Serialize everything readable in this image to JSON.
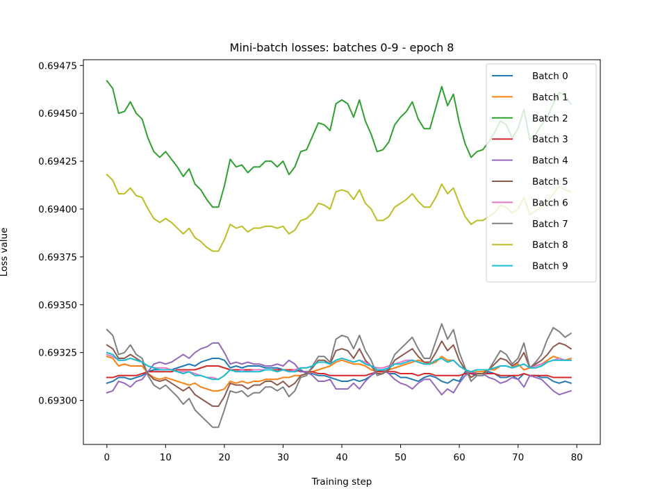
{
  "chart_data": {
    "type": "line",
    "title": "Mini-batch losses: batches 0-9 - epoch 8",
    "xlabel": "Training step",
    "ylabel": "Loss value",
    "xlim": [
      -4,
      84
    ],
    "ylim": [
      0.69277,
      0.69478
    ],
    "x_ticks": [
      0,
      10,
      20,
      30,
      40,
      50,
      60,
      70,
      80
    ],
    "x_tick_labels": [
      "0",
      "10",
      "20",
      "30",
      "40",
      "50",
      "60",
      "70",
      "80"
    ],
    "y_ticks": [
      0.693,
      0.69325,
      0.6935,
      0.69375,
      0.694,
      0.69425,
      0.6945,
      0.69475
    ],
    "y_tick_labels": [
      "0.69300",
      "0.69325",
      "0.69350",
      "0.69375",
      "0.69400",
      "0.69425",
      "0.69450",
      "0.69475"
    ],
    "grid": false,
    "legend_position": "top-right",
    "x_start": 0,
    "x_step": 1,
    "series": [
      {
        "name": "Batch 0",
        "color": "#1f77b4",
        "values": [
          0.69309,
          0.6931,
          0.69312,
          0.69312,
          0.69311,
          0.69312,
          0.69313,
          0.69315,
          0.69316,
          0.69316,
          0.69316,
          0.69316,
          0.69317,
          0.69318,
          0.69319,
          0.69318,
          0.6932,
          0.69321,
          0.69322,
          0.69322,
          0.69321,
          0.69317,
          0.69318,
          0.69317,
          0.69318,
          0.69318,
          0.69318,
          0.69317,
          0.69317,
          0.69317,
          0.69316,
          0.69316,
          0.69315,
          0.69316,
          0.69314,
          0.69314,
          0.69313,
          0.69313,
          0.69312,
          0.69311,
          0.6931,
          0.6931,
          0.69311,
          0.6931,
          0.69311,
          0.69313,
          0.69315,
          0.69316,
          0.69314,
          0.69314,
          0.69312,
          0.69312,
          0.69311,
          0.6931,
          0.69312,
          0.69313,
          0.69312,
          0.6931,
          0.69309,
          0.69311,
          0.6931,
          0.69315,
          0.69314,
          0.69313,
          0.69313,
          0.69315,
          0.69314,
          0.69312,
          0.69312,
          0.69313,
          0.69311,
          0.69314,
          0.69313,
          0.69313,
          0.69312,
          0.69312,
          0.6931,
          0.69309,
          0.6931,
          0.69309
        ]
      },
      {
        "name": "Batch 1",
        "color": "#ff7f0e",
        "values": [
          0.69323,
          0.69322,
          0.69318,
          0.69319,
          0.69318,
          0.69318,
          0.69318,
          0.69314,
          0.69312,
          0.69311,
          0.69312,
          0.69311,
          0.6931,
          0.69309,
          0.69308,
          0.69309,
          0.69307,
          0.69306,
          0.69305,
          0.69305,
          0.69306,
          0.6931,
          0.69309,
          0.6931,
          0.69309,
          0.6931,
          0.6931,
          0.69311,
          0.69311,
          0.69311,
          0.69312,
          0.69312,
          0.69313,
          0.69313,
          0.69314,
          0.69315,
          0.69316,
          0.69317,
          0.69318,
          0.6932,
          0.69321,
          0.6932,
          0.69319,
          0.69319,
          0.69318,
          0.69316,
          0.69315,
          0.69315,
          0.69316,
          0.69317,
          0.69318,
          0.69319,
          0.6932,
          0.69321,
          0.6932,
          0.69319,
          0.6932,
          0.69323,
          0.69321,
          0.69321,
          0.69318,
          0.69316,
          0.69314,
          0.69315,
          0.69315,
          0.69316,
          0.69316,
          0.69318,
          0.69318,
          0.69317,
          0.69319,
          0.69316,
          0.69317,
          0.69318,
          0.69319,
          0.69321,
          0.69323,
          0.69322,
          0.69321,
          0.69322
        ]
      },
      {
        "name": "Batch 2",
        "color": "#2ca02c",
        "values": [
          0.69467,
          0.69463,
          0.6945,
          0.69451,
          0.69456,
          0.6945,
          0.69447,
          0.69437,
          0.6943,
          0.69427,
          0.6943,
          0.69426,
          0.69422,
          0.69417,
          0.69421,
          0.69413,
          0.6941,
          0.69405,
          0.69401,
          0.69401,
          0.69412,
          0.69426,
          0.69422,
          0.69423,
          0.69419,
          0.69422,
          0.69422,
          0.69425,
          0.69425,
          0.69422,
          0.69425,
          0.69418,
          0.69422,
          0.6943,
          0.69431,
          0.69438,
          0.69445,
          0.69444,
          0.69441,
          0.69455,
          0.69457,
          0.69455,
          0.69448,
          0.69457,
          0.69446,
          0.69439,
          0.6943,
          0.69431,
          0.69435,
          0.69444,
          0.69448,
          0.69451,
          0.69456,
          0.69447,
          0.69442,
          0.69442,
          0.69453,
          0.69464,
          0.69454,
          0.6946,
          0.69445,
          0.69434,
          0.69427,
          0.6943,
          0.69431,
          0.69435,
          0.6944,
          0.69446,
          0.69444,
          0.69437,
          0.69442,
          0.69452,
          0.69436,
          0.69439,
          0.69444,
          0.69448,
          0.69455,
          0.69461,
          0.69459,
          0.69455
        ]
      },
      {
        "name": "Batch 3",
        "color": "#d62728",
        "values": [
          0.69312,
          0.69312,
          0.69313,
          0.69313,
          0.69313,
          0.69313,
          0.69314,
          0.69315,
          0.69315,
          0.69315,
          0.69315,
          0.69315,
          0.69316,
          0.69316,
          0.69316,
          0.69316,
          0.69317,
          0.69318,
          0.69318,
          0.69318,
          0.69317,
          0.69316,
          0.69316,
          0.69316,
          0.69316,
          0.69316,
          0.69316,
          0.69316,
          0.69316,
          0.69316,
          0.69316,
          0.69316,
          0.69316,
          0.69315,
          0.69315,
          0.69315,
          0.69314,
          0.69314,
          0.69313,
          0.69313,
          0.69313,
          0.69313,
          0.69313,
          0.69313,
          0.69313,
          0.69314,
          0.69315,
          0.69315,
          0.69315,
          0.69315,
          0.69314,
          0.69314,
          0.69314,
          0.69313,
          0.69314,
          0.69314,
          0.69313,
          0.69313,
          0.69313,
          0.69313,
          0.69313,
          0.69314,
          0.69314,
          0.69314,
          0.69314,
          0.69314,
          0.69314,
          0.69313,
          0.69313,
          0.69313,
          0.69313,
          0.69314,
          0.69313,
          0.69313,
          0.69313,
          0.69313,
          0.69312,
          0.69312,
          0.69312,
          0.69312
        ]
      },
      {
        "name": "Batch 4",
        "color": "#9467bd",
        "values": [
          0.69304,
          0.69305,
          0.6931,
          0.69309,
          0.69307,
          0.6931,
          0.69311,
          0.69315,
          0.69319,
          0.6932,
          0.69319,
          0.6932,
          0.69322,
          0.69324,
          0.69322,
          0.69325,
          0.69327,
          0.69328,
          0.6933,
          0.6933,
          0.69325,
          0.69319,
          0.6932,
          0.69319,
          0.6932,
          0.69319,
          0.69319,
          0.69318,
          0.69318,
          0.69319,
          0.69318,
          0.69321,
          0.69319,
          0.69315,
          0.69315,
          0.69313,
          0.6931,
          0.6931,
          0.69311,
          0.69306,
          0.69306,
          0.69306,
          0.69309,
          0.69306,
          0.6931,
          0.69313,
          0.69316,
          0.69316,
          0.69314,
          0.69311,
          0.69309,
          0.69308,
          0.69306,
          0.69309,
          0.69311,
          0.69311,
          0.69307,
          0.69303,
          0.69306,
          0.69304,
          0.69309,
          0.69313,
          0.69315,
          0.69314,
          0.69314,
          0.69312,
          0.69311,
          0.69309,
          0.6931,
          0.69312,
          0.69311,
          0.69307,
          0.69313,
          0.69312,
          0.69311,
          0.69308,
          0.69305,
          0.69303,
          0.69304,
          0.69305
        ]
      },
      {
        "name": "Batch 5",
        "color": "#8c564b",
        "values": [
          0.69329,
          0.69327,
          0.69322,
          0.69322,
          0.69324,
          0.69322,
          0.6932,
          0.69314,
          0.69311,
          0.6931,
          0.69311,
          0.69309,
          0.69307,
          0.69305,
          0.69307,
          0.69303,
          0.69301,
          0.69299,
          0.69297,
          0.69297,
          0.69302,
          0.69309,
          0.69308,
          0.69308,
          0.69306,
          0.69308,
          0.69308,
          0.6931,
          0.6931,
          0.69308,
          0.6931,
          0.69307,
          0.69309,
          0.69313,
          0.69314,
          0.69317,
          0.69321,
          0.69321,
          0.69319,
          0.69326,
          0.69327,
          0.69326,
          0.69322,
          0.69327,
          0.69321,
          0.69318,
          0.69314,
          0.69314,
          0.69316,
          0.69321,
          0.69323,
          0.69325,
          0.69327,
          0.69323,
          0.6932,
          0.6932,
          0.69325,
          0.69331,
          0.69326,
          0.69329,
          0.69321,
          0.69316,
          0.69312,
          0.69314,
          0.69314,
          0.69316,
          0.69319,
          0.69322,
          0.69321,
          0.69318,
          0.6932,
          0.69325,
          0.69317,
          0.69319,
          0.69321,
          0.69324,
          0.69328,
          0.6933,
          0.69329,
          0.69327
        ]
      },
      {
        "name": "Batch 6",
        "color": "#e377c2",
        "values": [
          0.69324,
          0.69323,
          0.69321,
          0.69321,
          0.69322,
          0.69321,
          0.6932,
          0.69318,
          0.69317,
          0.69317,
          0.69317,
          0.69316,
          0.69315,
          0.69315,
          0.69315,
          0.69314,
          0.69313,
          0.69312,
          0.69312,
          0.69311,
          0.69313,
          0.69316,
          0.69315,
          0.69316,
          0.69315,
          0.69316,
          0.69316,
          0.69316,
          0.69316,
          0.69315,
          0.69316,
          0.69315,
          0.69316,
          0.69317,
          0.69317,
          0.69318,
          0.6932,
          0.6932,
          0.69319,
          0.69321,
          0.69322,
          0.69321,
          0.6932,
          0.69321,
          0.6932,
          0.69318,
          0.69317,
          0.69317,
          0.69318,
          0.69319,
          0.6932,
          0.69321,
          0.69321,
          0.6932,
          0.69319,
          0.69319,
          0.69321,
          0.69322,
          0.6932,
          0.69321,
          0.69318,
          0.69316,
          0.69315,
          0.69316,
          0.69316,
          0.69316,
          0.69317,
          0.69318,
          0.69318,
          0.69317,
          0.69318,
          0.69319,
          0.69317,
          0.69318,
          0.69319,
          0.6932,
          0.69321,
          0.69322,
          0.69321,
          0.69321
        ]
      },
      {
        "name": "Batch 7",
        "color": "#7f7f7f",
        "values": [
          0.69337,
          0.69334,
          0.69324,
          0.69325,
          0.69329,
          0.69324,
          0.69322,
          0.69313,
          0.69308,
          0.69306,
          0.69308,
          0.69305,
          0.69302,
          0.69298,
          0.69301,
          0.69295,
          0.69292,
          0.69289,
          0.69286,
          0.69286,
          0.69295,
          0.69305,
          0.69304,
          0.69305,
          0.69302,
          0.69304,
          0.69304,
          0.69307,
          0.69307,
          0.69305,
          0.69307,
          0.69302,
          0.69305,
          0.69312,
          0.69313,
          0.69318,
          0.69323,
          0.69323,
          0.6932,
          0.69332,
          0.69334,
          0.69333,
          0.69327,
          0.69334,
          0.69326,
          0.69321,
          0.69313,
          0.69314,
          0.69317,
          0.69324,
          0.69327,
          0.6933,
          0.69333,
          0.69327,
          0.69322,
          0.69322,
          0.69331,
          0.6934,
          0.69332,
          0.69337,
          0.69325,
          0.69317,
          0.6931,
          0.69313,
          0.69313,
          0.69316,
          0.69321,
          0.69326,
          0.69324,
          0.69319,
          0.69322,
          0.6933,
          0.69317,
          0.6932,
          0.69324,
          0.69332,
          0.69338,
          0.69336,
          0.69333,
          0.69335
        ]
      },
      {
        "name": "Batch 8",
        "color": "#bcbd22",
        "values": [
          0.69418,
          0.69415,
          0.69408,
          0.69408,
          0.69411,
          0.69407,
          0.69406,
          0.694,
          0.69395,
          0.69393,
          0.69395,
          0.69393,
          0.6939,
          0.69387,
          0.6939,
          0.69385,
          0.69383,
          0.6938,
          0.69378,
          0.69378,
          0.69384,
          0.69392,
          0.6939,
          0.69391,
          0.69388,
          0.6939,
          0.6939,
          0.69391,
          0.69391,
          0.6939,
          0.69391,
          0.69387,
          0.69389,
          0.69394,
          0.69395,
          0.69398,
          0.69403,
          0.69402,
          0.694,
          0.69409,
          0.6941,
          0.69409,
          0.69405,
          0.6941,
          0.69403,
          0.694,
          0.69394,
          0.69394,
          0.69396,
          0.69401,
          0.69403,
          0.69405,
          0.69408,
          0.69404,
          0.69401,
          0.69401,
          0.69406,
          0.69413,
          0.69408,
          0.69411,
          0.69403,
          0.69396,
          0.69392,
          0.69394,
          0.69394,
          0.69396,
          0.69398,
          0.69402,
          0.69401,
          0.69398,
          0.694,
          0.69406,
          0.69397,
          0.69399,
          0.69401,
          0.69404,
          0.69408,
          0.69412,
          0.6941,
          0.69409
        ]
      },
      {
        "name": "Batch 9",
        "color": "#17becf",
        "values": [
          0.69325,
          0.69324,
          0.69321,
          0.69321,
          0.69322,
          0.69321,
          0.6932,
          0.69318,
          0.69317,
          0.69316,
          0.69316,
          0.69316,
          0.69315,
          0.69314,
          0.69315,
          0.69313,
          0.69313,
          0.69312,
          0.69311,
          0.69311,
          0.69313,
          0.69316,
          0.69315,
          0.69315,
          0.69315,
          0.69315,
          0.69315,
          0.69316,
          0.69316,
          0.69315,
          0.69316,
          0.69315,
          0.69315,
          0.69317,
          0.69317,
          0.69318,
          0.6932,
          0.6932,
          0.69319,
          0.69321,
          0.69322,
          0.69321,
          0.6932,
          0.69321,
          0.69319,
          0.69318,
          0.69316,
          0.69316,
          0.69317,
          0.69319,
          0.69319,
          0.6932,
          0.69321,
          0.6932,
          0.69319,
          0.69319,
          0.69321,
          0.69322,
          0.6932,
          0.69321,
          0.69318,
          0.69316,
          0.69315,
          0.69316,
          0.69316,
          0.69316,
          0.69317,
          0.69318,
          0.69318,
          0.69317,
          0.69318,
          0.69319,
          0.69317,
          0.69317,
          0.69318,
          0.6932,
          0.69321,
          0.69321,
          0.69321,
          0.69321
        ]
      }
    ]
  }
}
